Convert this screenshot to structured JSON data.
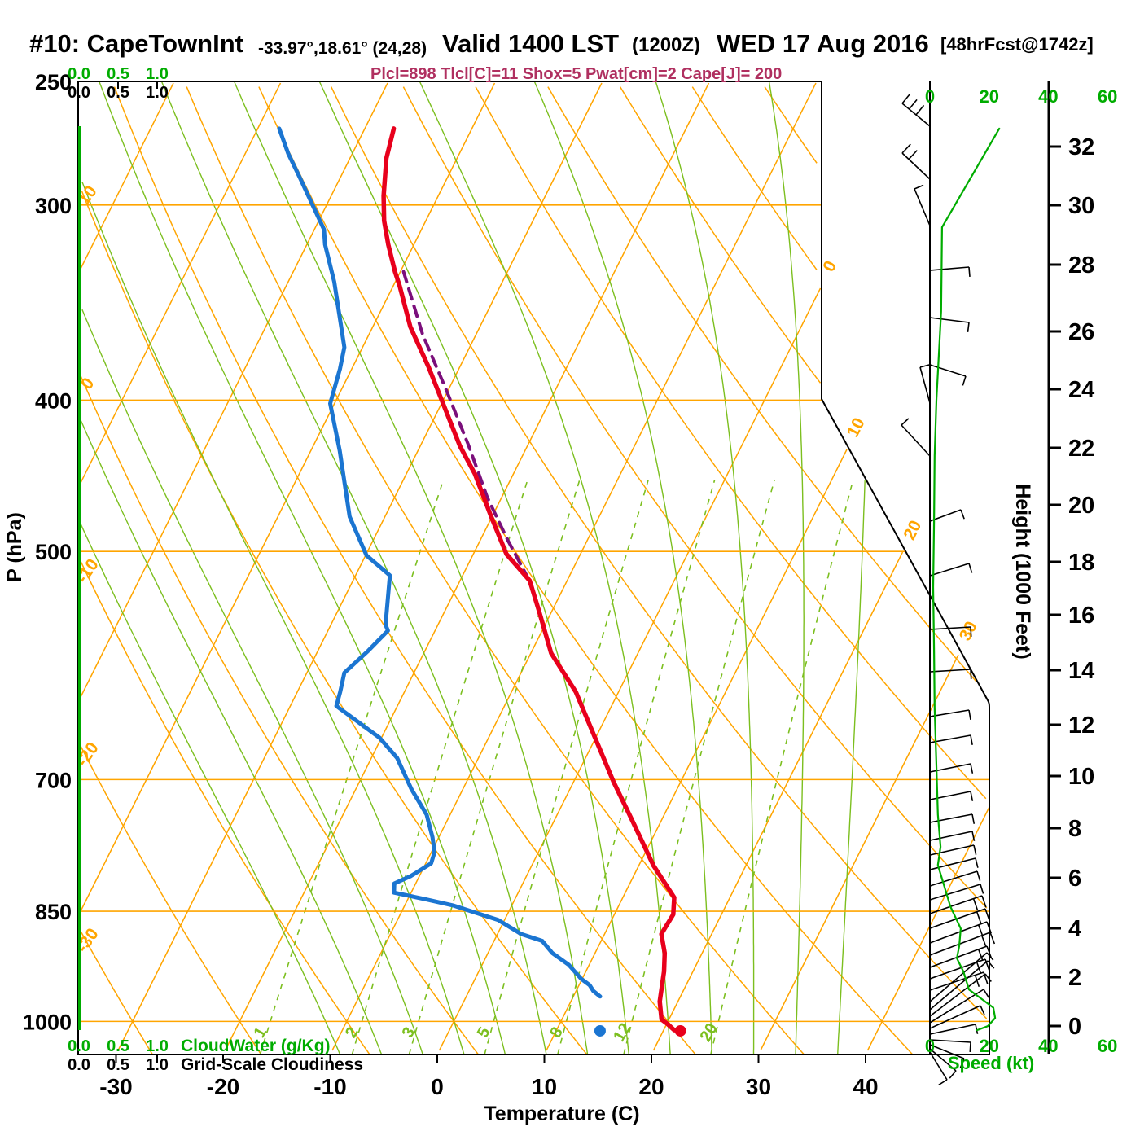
{
  "header": {
    "station": "#10: CapeTownInt",
    "coords": "-33.97°,18.61° (24,28)",
    "valid_main": "Valid 1400 LST",
    "valid_z": "(1200Z)",
    "valid_date": "WED 17 Aug 2016",
    "forecast_tag": "[48hrFcst@1742z]",
    "params": "Plcl=898 Tlcl[C]=11 Shox=5 Pwat[cm]=2 Cape[J]= 200"
  },
  "axes": {
    "pressure": {
      "label": "P (hPa)",
      "ticks": [
        250,
        300,
        400,
        500,
        700,
        850,
        1000
      ]
    },
    "temperature": {
      "label": "Temperature (C)",
      "ticks": [
        -30,
        -20,
        -10,
        0,
        10,
        20,
        30,
        40
      ]
    },
    "height": {
      "label": "Height (1000 Feet)",
      "ticks": [
        32,
        30,
        28,
        26,
        24,
        22,
        20,
        18,
        16,
        14,
        12,
        10,
        8,
        6,
        4,
        2,
        0
      ]
    },
    "wind_speed": {
      "label": "Speed (kt)",
      "ticks": [
        "0",
        "20",
        "40",
        "60"
      ]
    },
    "cloud_water": {
      "label": "CloudWater (g/Kg)",
      "ticks": [
        "0.0",
        "0.5",
        "1.0"
      ]
    },
    "cloudiness": {
      "label": "Grid-Scale Cloudiness",
      "ticks": [
        "0.0",
        "0.5",
        "1.0"
      ]
    }
  },
  "chart_data": {
    "type": "skewt",
    "isotherm_labels": [
      0,
      10,
      20,
      30
    ],
    "dry_adiabat_labels": [
      10,
      0,
      -10,
      -20,
      -30
    ],
    "mixing_ratio_labels": [
      1,
      2,
      3,
      5,
      8,
      12,
      20
    ],
    "temperature_profile": [
      [
        268,
        -47.3
      ],
      [
        280,
        -46.6
      ],
      [
        296,
        -45.1
      ],
      [
        307,
        -43.9
      ],
      [
        318,
        -42.4
      ],
      [
        331,
        -40.5
      ],
      [
        338,
        -39.4
      ],
      [
        359,
        -36.5
      ],
      [
        381,
        -32.9
      ],
      [
        401,
        -30.0
      ],
      [
        428,
        -26.3
      ],
      [
        446,
        -23.6
      ],
      [
        474,
        -20.2
      ],
      [
        502,
        -16.9
      ],
      [
        522,
        -13.5
      ],
      [
        546,
        -11.2
      ],
      [
        581,
        -8.1
      ],
      [
        615,
        -4.0
      ],
      [
        702,
        3.7
      ],
      [
        745,
        7.4
      ],
      [
        795,
        11.4
      ],
      [
        833,
        14.8
      ],
      [
        854,
        15.5
      ],
      [
        879,
        15.3
      ],
      [
        904,
        16.5
      ],
      [
        929,
        17.3
      ],
      [
        971,
        18.3
      ],
      [
        997,
        19.3
      ],
      [
        1004,
        20.1
      ],
      [
        1013,
        21.0
      ]
    ],
    "dewpoint_profile": [
      [
        268,
        -58.0
      ],
      [
        278,
        -56.0
      ],
      [
        288,
        -53.8
      ],
      [
        301,
        -51.1
      ],
      [
        311,
        -49.1
      ],
      [
        318,
        -48.3
      ],
      [
        336,
        -45.7
      ],
      [
        370,
        -41.7
      ],
      [
        382,
        -41.1
      ],
      [
        402,
        -40.4
      ],
      [
        431,
        -37.3
      ],
      [
        475,
        -33.3
      ],
      [
        503,
        -29.9
      ],
      [
        518,
        -26.8
      ],
      [
        557,
        -24.9
      ],
      [
        562,
        -24.4
      ],
      [
        579,
        -25.3
      ],
      [
        598,
        -26.5
      ],
      [
        615,
        -26.0
      ],
      [
        628,
        -25.7
      ],
      [
        658,
        -20.2
      ],
      [
        678,
        -17.6
      ],
      [
        710,
        -14.8
      ],
      [
        737,
        -12.2
      ],
      [
        762,
        -10.6
      ],
      [
        779,
        -9.7
      ],
      [
        792,
        -9.5
      ],
      [
        807,
        -10.8
      ],
      [
        816,
        -12.0
      ],
      [
        827,
        -11.6
      ],
      [
        828,
        -11.2
      ],
      [
        835,
        -8.4
      ],
      [
        843,
        -5.4
      ],
      [
        861,
        -0.6
      ],
      [
        879,
        2.2
      ],
      [
        888,
        4.5
      ],
      [
        904,
        6.0
      ],
      [
        920,
        8.1
      ],
      [
        939,
        9.9
      ],
      [
        948,
        11.0
      ],
      [
        956,
        11.6
      ],
      [
        964,
        12.5
      ]
    ],
    "parcel_profile": [
      [
        331,
        -39.7
      ],
      [
        363,
        -35.0
      ],
      [
        394,
        -30.2
      ],
      [
        427,
        -25.6
      ],
      [
        462,
        -21.3
      ],
      [
        492,
        -17.4
      ],
      [
        519,
        -13.9
      ]
    ],
    "surface_temperature": [
      1014,
      21.6
    ],
    "surface_dewpoint": [
      1014,
      14.1
    ],
    "wind_speed_profile": [
      [
        268,
        23.4
      ],
      [
        310,
        4.1
      ],
      [
        351,
        3.8
      ],
      [
        400,
        2.2
      ],
      [
        434,
        1.6
      ],
      [
        478,
        1.4
      ],
      [
        527,
        1.1
      ],
      [
        579,
        1.4
      ],
      [
        630,
        1.6
      ],
      [
        686,
        2.2
      ],
      [
        737,
        2.7
      ],
      [
        773,
        3.6
      ],
      [
        794,
        2.7
      ],
      [
        844,
        6.9
      ],
      [
        872,
        10.4
      ],
      [
        895,
        9.9
      ],
      [
        911,
        9.1
      ],
      [
        929,
        11.3
      ],
      [
        954,
        13.2
      ],
      [
        980,
        21.4
      ],
      [
        995,
        22.0
      ],
      [
        1007,
        19.5
      ],
      [
        1013,
        15.9
      ]
    ],
    "wind_barbs": [
      [
        155,
        1108,
        127,
        3
      ],
      [
        220,
        1108,
        188,
        2
      ],
      [
        277,
        1123,
        232,
        1
      ],
      [
        332,
        1190,
        328,
        1
      ],
      [
        390,
        1190,
        396,
        1
      ],
      [
        448,
        1186,
        462,
        1
      ],
      [
        495,
        1130,
        451,
        1
      ],
      [
        560,
        1107,
        522,
        1
      ],
      [
        640,
        1180,
        626,
        1
      ],
      [
        707,
        1190,
        692,
        1
      ],
      [
        773,
        1192,
        770,
        1
      ],
      [
        825,
        1192,
        822,
        1
      ],
      [
        880,
        1190,
        872,
        1
      ],
      [
        912,
        1192,
        903,
        1
      ],
      [
        948,
        1192,
        938,
        1
      ],
      [
        982,
        1192,
        972,
        1
      ],
      [
        1010,
        1194,
        1000,
        1
      ],
      [
        1032,
        1194,
        1021,
        1
      ],
      [
        1050,
        1196,
        1038,
        1
      ],
      [
        1068,
        1198,
        1054,
        1
      ],
      [
        1088,
        1200,
        1070,
        1
      ],
      [
        1105,
        1204,
        1086,
        1
      ],
      [
        1122,
        1206,
        1100,
        2
      ],
      [
        1140,
        1210,
        1116,
        2
      ],
      [
        1158,
        1212,
        1132,
        2
      ],
      [
        1173,
        1216,
        1145,
        2
      ],
      [
        1188,
        1212,
        1162,
        2
      ],
      [
        1202,
        1210,
        1178,
        2
      ],
      [
        1216,
        1208,
        1194,
        2
      ],
      [
        1230,
        1212,
        1170,
        1
      ],
      [
        1240,
        1213,
        1180,
        1
      ],
      [
        1248,
        1210,
        1196,
        1
      ],
      [
        1256,
        1208,
        1215,
        1
      ],
      [
        1263,
        1204,
        1235,
        1
      ],
      [
        1270,
        1198,
        1258,
        1
      ],
      [
        1277,
        1192,
        1280,
        1
      ],
      [
        1283,
        1184,
        1300,
        1
      ],
      [
        1288,
        1174,
        1315,
        1
      ],
      [
        1292,
        1163,
        1326,
        1
      ]
    ]
  },
  "colors": {
    "grid_warm": "#FFA500",
    "grid_moist": "#7CBF1F",
    "accent_green": "#00AC00",
    "temperature": "#E8001C",
    "dewpoint": "#1B75D1",
    "parcel": "#7B0F7B",
    "params": "#B03060",
    "frame": "#000000"
  }
}
